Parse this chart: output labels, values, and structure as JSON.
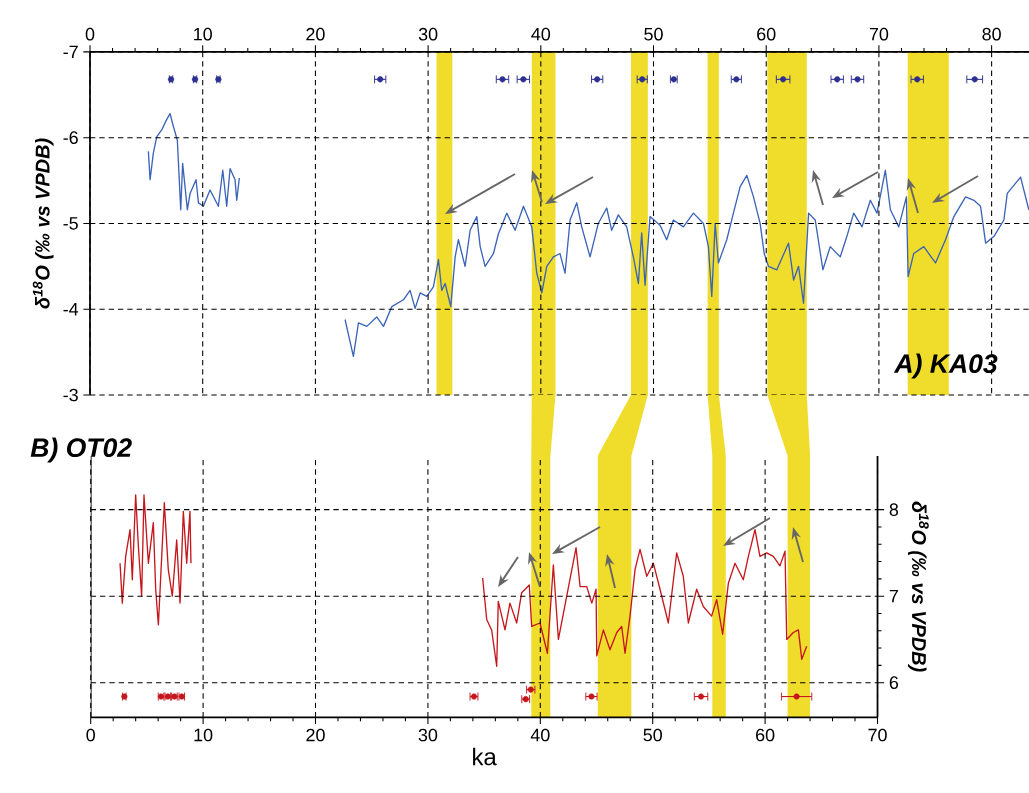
{
  "chart_data": [
    {
      "type": "line",
      "title": "A) KA03",
      "ylabel": "δ$^{18}$O (‰ vs VPDB)",
      "xlim": [
        0,
        83.4
      ],
      "xticks": [
        0,
        10,
        20,
        30,
        40,
        50,
        60,
        70,
        80
      ],
      "ylim": [
        -3,
        -7
      ],
      "yticks": [
        -7,
        -6,
        -5,
        -4,
        -3
      ],
      "grid": true,
      "marker": "none",
      "series": [
        {
          "type": "line",
          "color": "#3b63b8",
          "x": [
            5.18,
            5.33,
            5.62,
            5.92,
            6.36,
            6.8,
            7.1,
            7.4,
            7.75,
            8.05,
            8.22,
            8.64,
            8.88,
            9.41,
            9.62,
            10.06,
            10.65,
            11.39,
            11.78,
            12.13,
            12.43,
            12.87,
            13.02,
            13.25
          ],
          "values": [
            -5.84,
            -5.51,
            -5.82,
            -6.01,
            -6.09,
            -6.21,
            -6.28,
            -6.13,
            -5.97,
            -5.16,
            -5.7,
            -5.16,
            -5.35,
            -5.51,
            -5.24,
            -5.2,
            -5.39,
            -5.2,
            -5.62,
            -5.2,
            -5.64,
            -5.51,
            -5.27,
            -5.53
          ]
        },
        {
          "type": "line",
          "color": "#3b63b8",
          "x": [
            22.63,
            23.37,
            23.82,
            24.56,
            25.44,
            26.04,
            26.78,
            27.81,
            28.4,
            28.85,
            29.29,
            29.88,
            30.47,
            30.92,
            31.21,
            31.51,
            32.01,
            32.4,
            32.69,
            33.28,
            33.73,
            34.32,
            34.62,
            35.06,
            35.8,
            36.24,
            36.98,
            37.72,
            38.46,
            39.2,
            39.64,
            40.09,
            40.53,
            41.12,
            41.7,
            42.15,
            42.6,
            43.19,
            43.63,
            44.37,
            45.1,
            45.85,
            46.29,
            46.88,
            47.62,
            48.21,
            48.66,
            48.95,
            49.25,
            49.69,
            50.58,
            51.17,
            51.76,
            52.65,
            53.54,
            54.43,
            54.87,
            55.17,
            55.47,
            55.76,
            56.5,
            57.09,
            57.69,
            58.28,
            58.87,
            59.46,
            59.82,
            60.2,
            60.94,
            61.98,
            62.43,
            62.87,
            63.31,
            63.76,
            64.35,
            65.03,
            65.68,
            66.57,
            67.16,
            67.76,
            68.5,
            69.24,
            69.83,
            70.57,
            71.02,
            71.76,
            72.44,
            72.59,
            73.09,
            73.98,
            75.02,
            75.91,
            76.65,
            77.69,
            78.43,
            79.02,
            79.47,
            80.21,
            81.09,
            81.39,
            82.57,
            83.3
          ],
          "values": [
            -3.88,
            -3.45,
            -3.84,
            -3.8,
            -3.91,
            -3.8,
            -4.03,
            -4.11,
            -4.22,
            -4.01,
            -4.19,
            -4.15,
            -4.26,
            -4.58,
            -4.22,
            -4.3,
            -4.03,
            -4.61,
            -4.81,
            -4.5,
            -4.92,
            -5.08,
            -4.73,
            -4.5,
            -4.65,
            -4.88,
            -5.12,
            -4.92,
            -5.2,
            -4.96,
            -4.42,
            -4.19,
            -4.5,
            -4.61,
            -4.65,
            -4.42,
            -5.04,
            -5.24,
            -4.96,
            -4.61,
            -5.0,
            -5.18,
            -4.92,
            -5.1,
            -4.96,
            -4.61,
            -4.3,
            -4.89,
            -4.28,
            -5.08,
            -4.98,
            -4.81,
            -5.04,
            -4.96,
            -5.12,
            -5.0,
            -4.73,
            -4.15,
            -5.0,
            -4.54,
            -4.81,
            -5.12,
            -5.43,
            -5.56,
            -5.31,
            -5.0,
            -4.65,
            -4.5,
            -4.46,
            -4.77,
            -4.34,
            -4.5,
            -4.07,
            -5.12,
            -5.04,
            -4.46,
            -4.73,
            -4.61,
            -4.85,
            -5.12,
            -4.96,
            -5.27,
            -5.12,
            -5.62,
            -5.16,
            -4.96,
            -5.31,
            -4.38,
            -4.65,
            -4.73,
            -4.54,
            -4.81,
            -5.08,
            -5.31,
            -5.27,
            -5.2,
            -4.77,
            -4.85,
            -5.04,
            -5.35,
            -5.54,
            -5.16
          ]
        },
        {
          "type": "scatter",
          "marker": "circle",
          "color": "#2b2f8f",
          "x": [
            7.19,
            9.32,
            11.39,
            25.75,
            36.6,
            38.45,
            45.0,
            49.0,
            51.8,
            57.35,
            61.5,
            66.3,
            68.1,
            73.4,
            78.5
          ],
          "values": [
            -6.68,
            -6.68,
            -6.68,
            -6.68,
            -6.68,
            -6.68,
            -6.68,
            -6.68,
            -6.68,
            -6.68,
            -6.68,
            -6.68,
            -6.68,
            -6.68,
            -6.68
          ],
          "xerrors": [
            0.15,
            0.15,
            0.15,
            0.5,
            0.55,
            0.55,
            0.5,
            0.45,
            0.3,
            0.45,
            0.6,
            0.55,
            0.55,
            0.55,
            0.7
          ]
        }
      ],
      "bands": [
        {
          "axis": "x",
          "from": 30.75,
          "to": 32.15,
          "color": "#f0dc2a"
        },
        {
          "axis": "x",
          "from": 39.2,
          "to": 41.3,
          "color": "#f0dc2a"
        },
        {
          "axis": "x",
          "from": 48.0,
          "to": 49.5,
          "color": "#f0dc2a"
        },
        {
          "axis": "x",
          "from": 54.8,
          "to": 55.8,
          "color": "#f0dc2a"
        },
        {
          "axis": "x",
          "from": 60.1,
          "to": 63.6,
          "color": "#f0dc2a"
        },
        {
          "axis": "x",
          "from": 72.55,
          "to": 76.2,
          "color": "#f0dc2a"
        }
      ]
    },
    {
      "type": "line",
      "title": "B) OT02",
      "xlabel": "ka",
      "ylabel": "δ$^{18}$O (‰ vs VPDB)",
      "xlim": [
        0,
        70
      ],
      "xticks": [
        0,
        10,
        20,
        30,
        40,
        50,
        60,
        70
      ],
      "ylim": [
        5.6,
        8.62
      ],
      "yticks": [
        6,
        7,
        8
      ],
      "grid": true,
      "marker": "none",
      "series": [
        {
          "type": "line",
          "color": "#c4161c",
          "x": [
            2.61,
            2.81,
            3.11,
            3.5,
            3.7,
            4.0,
            4.24,
            4.53,
            4.74,
            5.13,
            5.57,
            5.78,
            6.02,
            6.55,
            6.9,
            7.26,
            7.65,
            7.95,
            8.24,
            8.54,
            8.83,
            8.92
          ],
          "values": [
            7.38,
            6.92,
            7.46,
            7.77,
            7.19,
            8.17,
            7.58,
            7.0,
            8.17,
            7.38,
            7.85,
            7.08,
            6.67,
            8.08,
            7.31,
            7.0,
            7.65,
            6.92,
            7.98,
            7.38,
            7.98,
            7.38
          ]
        },
        {
          "type": "line",
          "color": "#c4161c",
          "x": [
            34.87,
            35.23,
            35.67,
            36.12,
            36.26,
            36.86,
            37.3,
            37.9,
            38.34,
            39.02,
            39.23,
            39.97,
            40.63,
            41.16,
            41.61,
            42.35,
            43.18,
            43.54,
            44.13,
            44.58,
            44.96,
            45.02,
            45.61,
            46.2,
            46.8,
            47.24,
            47.54,
            47.98,
            48.43,
            48.87,
            49.47,
            50.06,
            50.65,
            51.39,
            52.13,
            52.72,
            53.17,
            53.91,
            54.5,
            55.24,
            55.69,
            56.22,
            56.73,
            57.32,
            58.06,
            58.51,
            59.1,
            59.54,
            60.14,
            60.73,
            61.32,
            61.77,
            61.92,
            62.51,
            62.96,
            63.26,
            63.7
          ],
          "values": [
            7.21,
            6.73,
            6.61,
            6.19,
            6.94,
            6.61,
            6.92,
            6.69,
            7.04,
            7.13,
            6.65,
            6.69,
            6.34,
            7.36,
            6.5,
            7.0,
            7.56,
            7.11,
            7.11,
            6.92,
            7.08,
            6.31,
            6.61,
            6.38,
            6.58,
            6.65,
            6.34,
            6.77,
            7.31,
            7.54,
            7.23,
            7.38,
            7.08,
            6.69,
            7.5,
            7.23,
            6.69,
            7.08,
            6.88,
            6.77,
            6.96,
            6.56,
            7.15,
            7.38,
            7.19,
            7.46,
            7.77,
            7.46,
            7.5,
            7.46,
            7.35,
            7.52,
            6.5,
            6.58,
            6.61,
            6.27,
            6.42
          ]
        },
        {
          "type": "scatter",
          "marker": "circle",
          "color": "#c4161c",
          "x": [
            2.99,
            6.26,
            6.86,
            7.45,
            8.1,
            34.1,
            38.7,
            39.15,
            44.55,
            54.3,
            62.8
          ],
          "values": [
            5.84,
            5.84,
            5.84,
            5.84,
            5.84,
            5.84,
            5.81,
            5.92,
            5.84,
            5.84,
            5.84
          ],
          "xerrors": [
            0.15,
            0.25,
            0.25,
            0.25,
            0.25,
            0.35,
            0.35,
            0.37,
            0.5,
            0.6,
            1.35
          ]
        }
      ],
      "bands": [
        {
          "axis": "x",
          "from": 39.2,
          "to": 40.9,
          "color": "#f0dc2a"
        },
        {
          "axis": "x",
          "from": 45.1,
          "to": 48.1,
          "color": "#f0dc2a"
        },
        {
          "axis": "x",
          "from": 55.3,
          "to": 56.5,
          "color": "#f0dc2a"
        },
        {
          "axis": "x",
          "from": 62.0,
          "to": 64.0,
          "color": "#f0dc2a"
        }
      ]
    }
  ]
}
